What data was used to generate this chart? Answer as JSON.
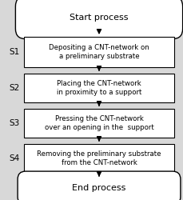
{
  "fig_bg": "#d8d8d8",
  "start_end_text": [
    "Start process",
    "End process"
  ],
  "steps": [
    {
      "label": "S1",
      "text": "Depositing a CNT-network on\na preliminary substrate"
    },
    {
      "label": "S2",
      "text": "Placing the CNT-network\nin proximity to a support"
    },
    {
      "label": "S3",
      "text": "Pressing the CNT-network\nover an opening in the  support"
    },
    {
      "label": "S4",
      "text": "Removing the preliminary substrate\nfrom the CNT-network"
    }
  ],
  "box_facecolor": "#ffffff",
  "box_edgecolor": "#000000",
  "text_color": "#000000",
  "label_color": "#000000",
  "arrow_color": "#000000",
  "start_end_fc": "#ffffff",
  "start_end_ec": "#000000",
  "title_fontsize": 8.0,
  "step_fontsize": 6.2,
  "label_fontsize": 7.5
}
